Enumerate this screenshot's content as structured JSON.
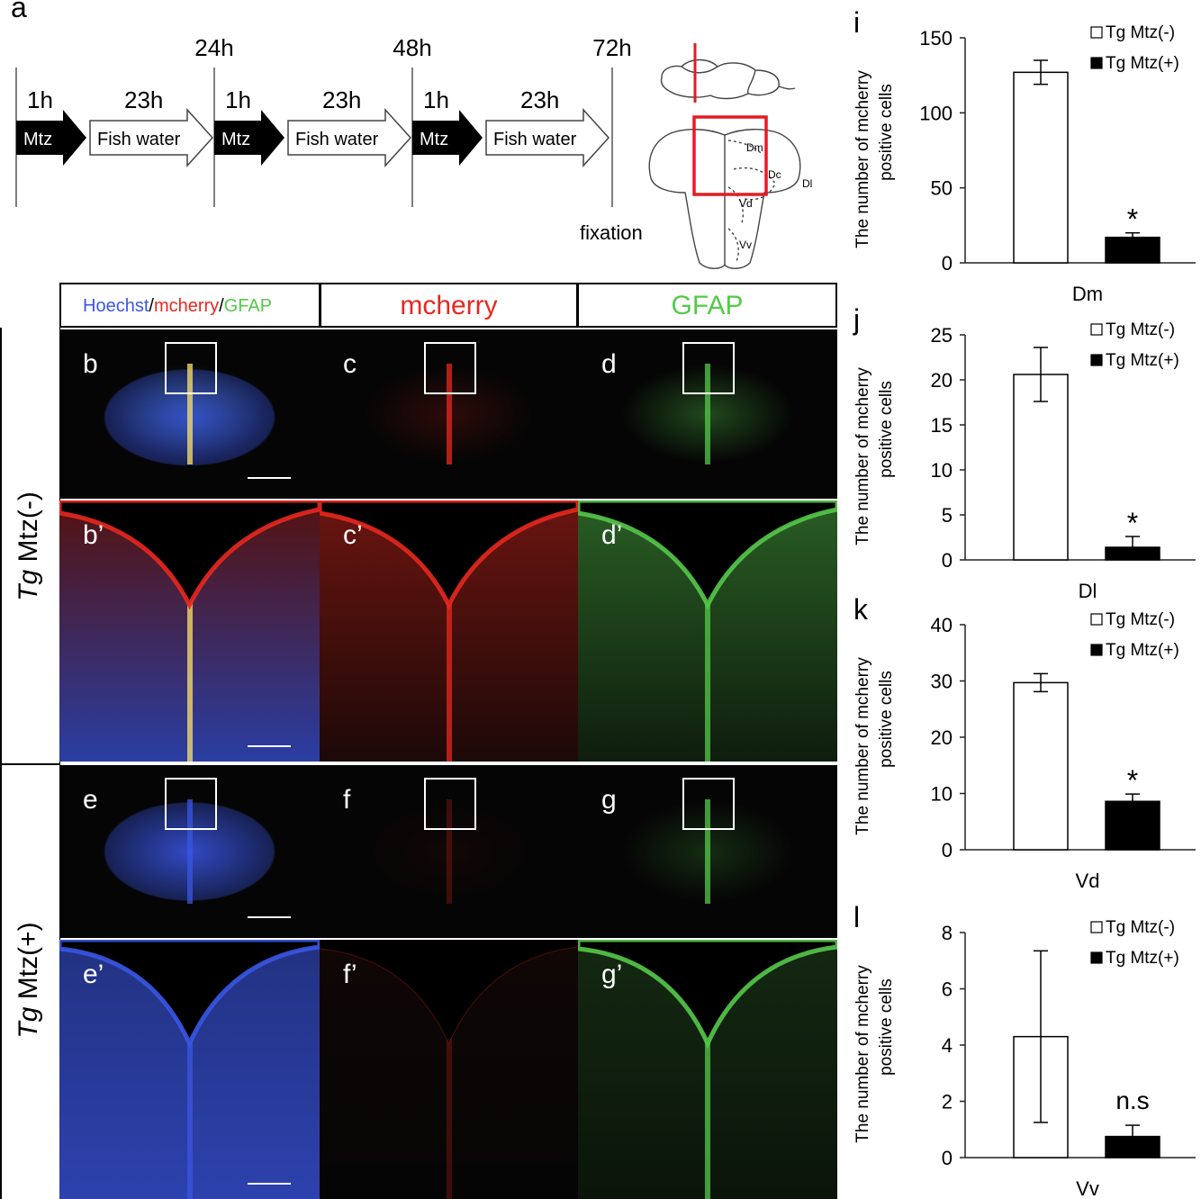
{
  "timeline": {
    "panel_letter": "a",
    "time_marks": [
      "24h",
      "48h",
      "72h"
    ],
    "durations": [
      "1h",
      "23h",
      "1h",
      "23h",
      "1h",
      "23h"
    ],
    "steps": [
      "Mtz",
      "Fish water",
      "Mtz",
      "Fish water",
      "Mtz",
      "Fish water"
    ],
    "end_label": "fixation",
    "brain_regions": [
      "Dm",
      "Dc",
      "Dl",
      "Vd",
      "Vv"
    ]
  },
  "micrographs": {
    "column_headers": {
      "merge_parts": [
        "Hoechst",
        "/",
        "mcherry",
        "/",
        "GFAP"
      ],
      "mcherry": "mcherry",
      "gfap": "GFAP"
    },
    "row_labels": [
      {
        "italic": "Tg",
        "rest": " Mtz(-)"
      },
      {
        "italic": "Tg",
        "rest": " Mtz(+)"
      }
    ],
    "panel_letters": [
      "b",
      "c",
      "d",
      "b’",
      "c’",
      "d’",
      "e",
      "f",
      "g",
      "e’",
      "f’",
      "g’"
    ],
    "colors": {
      "hoechst": "#3a56e6",
      "mcherry": "#e8281e",
      "gfap": "#55c94a"
    }
  },
  "chart_data": [
    {
      "type": "bar",
      "panel": "i",
      "categories": [
        "Tg Mtz(-)",
        "Tg Mtz(+)"
      ],
      "values": [
        127,
        17
      ],
      "errors": [
        8,
        3
      ],
      "xlabel": "Dm",
      "ylabel": "The number of mcherry positive cells",
      "ylim": [
        0,
        150
      ],
      "yticks": [
        "0",
        "50",
        "100",
        "150"
      ],
      "annotation": "*",
      "legend": [
        "Tg Mtz(-)",
        "Tg Mtz(+)"
      ]
    },
    {
      "type": "bar",
      "panel": "j",
      "categories": [
        "Tg Mtz(-)",
        "Tg Mtz(+)"
      ],
      "values": [
        20.6,
        1.4
      ],
      "errors": [
        3.0,
        1.2
      ],
      "xlabel": "Dl",
      "ylabel": "The number of mcherry positive cells",
      "ylim": [
        0,
        25
      ],
      "yticks": [
        "0",
        "5",
        "10",
        "15",
        "20",
        "25"
      ],
      "annotation": "*",
      "legend": [
        "Tg Mtz(-)",
        "Tg Mtz(+)"
      ]
    },
    {
      "type": "bar",
      "panel": "k",
      "categories": [
        "Tg Mtz(-)",
        "Tg Mtz(+)"
      ],
      "values": [
        29.7,
        8.6
      ],
      "errors": [
        1.6,
        1.3
      ],
      "xlabel": "Vd",
      "ylabel": "The number of mcherry positive cells",
      "ylim": [
        0,
        40
      ],
      "yticks": [
        "0",
        "10",
        "20",
        "30",
        "40"
      ],
      "annotation": "*",
      "legend": [
        "Tg Mtz(-)",
        "Tg Mtz(+)"
      ]
    },
    {
      "type": "bar",
      "panel": "l",
      "categories": [
        "Tg Mtz(-)",
        "Tg Mtz(+)"
      ],
      "values": [
        4.3,
        0.75
      ],
      "errors": [
        3.05,
        0.4
      ],
      "xlabel": "Vv",
      "ylabel": "The number of mcherry positive cells",
      "ylim": [
        0,
        8
      ],
      "yticks": [
        "0",
        "2",
        "4",
        "6",
        "8"
      ],
      "annotation": "n.s",
      "legend": [
        "Tg Mtz(-)",
        "Tg Mtz(+)"
      ]
    }
  ]
}
